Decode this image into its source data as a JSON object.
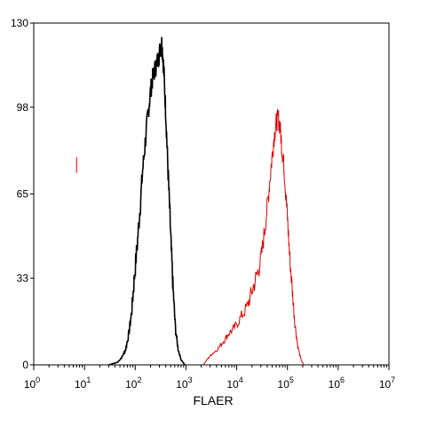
{
  "chart_data": {
    "type": "line",
    "xlabel": "FLAER",
    "ylabel": "",
    "x_scale": "log",
    "xlim": [
      1,
      10000000
    ],
    "ylim": [
      0,
      130
    ],
    "y_ticks": [
      0,
      33,
      65,
      98,
      130
    ],
    "x_ticks": [
      {
        "value": 1,
        "base": "10",
        "exp": "0"
      },
      {
        "value": 10,
        "base": "10",
        "exp": "1"
      },
      {
        "value": 100,
        "base": "10",
        "exp": "2"
      },
      {
        "value": 1000,
        "base": "10",
        "exp": "3"
      },
      {
        "value": 10000,
        "base": "10",
        "exp": "4"
      },
      {
        "value": 100000,
        "base": "10",
        "exp": "5"
      },
      {
        "value": 1000000,
        "base": "10",
        "exp": "6"
      },
      {
        "value": 10000000,
        "base": "10",
        "exp": "7"
      }
    ],
    "grid": false,
    "series": [
      {
        "color": "#000000",
        "points": [
          [
            30,
            0
          ],
          [
            45,
            1
          ],
          [
            55,
            3
          ],
          [
            65,
            6
          ],
          [
            75,
            12
          ],
          [
            85,
            20
          ],
          [
            95,
            32
          ],
          [
            110,
            46
          ],
          [
            125,
            60
          ],
          [
            140,
            74
          ],
          [
            160,
            86
          ],
          [
            180,
            96
          ],
          [
            200,
            104
          ],
          [
            220,
            109
          ],
          [
            250,
            113
          ],
          [
            280,
            116
          ],
          [
            310,
            120
          ],
          [
            330,
            123
          ],
          [
            350,
            118
          ],
          [
            370,
            110
          ],
          [
            400,
            96
          ],
          [
            430,
            80
          ],
          [
            470,
            62
          ],
          [
            510,
            45
          ],
          [
            560,
            28
          ],
          [
            620,
            14
          ],
          [
            700,
            6
          ],
          [
            800,
            2
          ],
          [
            950,
            0
          ]
        ]
      },
      {
        "color": "#e00000",
        "points": [
          [
            2200,
            0
          ],
          [
            2600,
            2
          ],
          [
            3200,
            4
          ],
          [
            4200,
            6
          ],
          [
            5500,
            9
          ],
          [
            7000,
            12
          ],
          [
            9000,
            14
          ],
          [
            12000,
            18
          ],
          [
            16000,
            22
          ],
          [
            20000,
            28
          ],
          [
            25000,
            34
          ],
          [
            30000,
            40
          ],
          [
            36000,
            52
          ],
          [
            42000,
            64
          ],
          [
            48000,
            76
          ],
          [
            54000,
            86
          ],
          [
            60000,
            92
          ],
          [
            66000,
            94
          ],
          [
            72000,
            90
          ],
          [
            78000,
            82
          ],
          [
            85000,
            76
          ],
          [
            92000,
            66
          ],
          [
            100000,
            56
          ],
          [
            110000,
            42
          ],
          [
            125000,
            28
          ],
          [
            140000,
            16
          ],
          [
            160000,
            7
          ],
          [
            185000,
            2
          ],
          [
            210000,
            0
          ]
        ]
      }
    ],
    "annotation_marker": {
      "x": 7,
      "y_from": 73,
      "y_to": 79,
      "color": "#e00000"
    }
  }
}
